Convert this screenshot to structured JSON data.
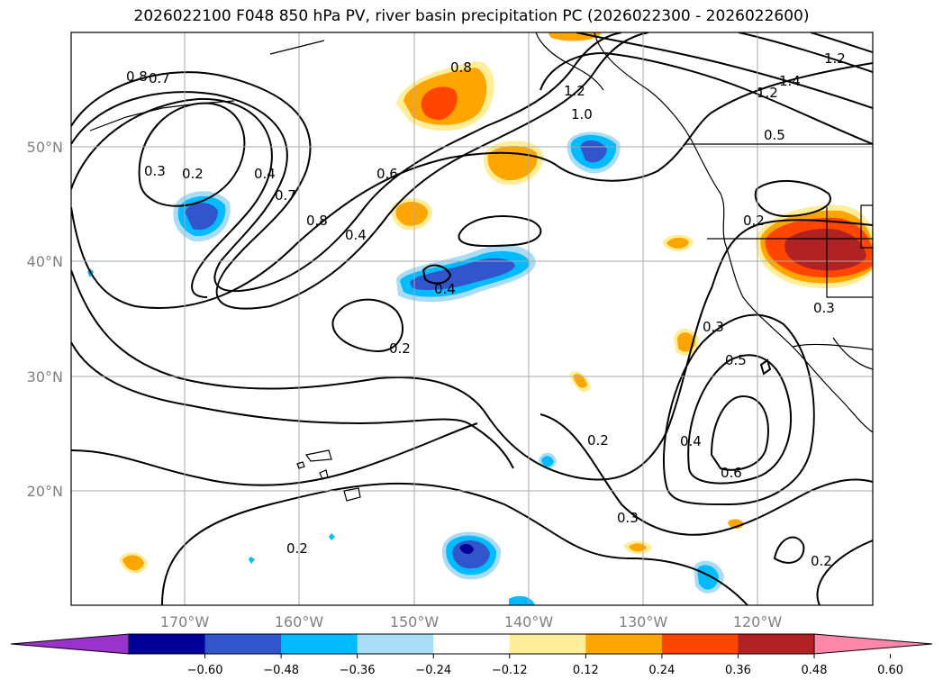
{
  "title": "2026022100 F048 850 hPa PV, river basin precipitation PC (2026022300 - 2026022600)",
  "lat_ticks": [
    "50°N",
    "40°N",
    "30°N",
    "20°N"
  ],
  "lon_ticks": [
    "170°W",
    "160°W",
    "150°W",
    "140°W",
    "130°W",
    "120°W"
  ],
  "colorbar": {
    "ticks": [
      "−0.60",
      "−0.48",
      "−0.36",
      "−0.24",
      "−0.12",
      "0.12",
      "0.24",
      "0.36",
      "0.48",
      "0.60"
    ],
    "colors": [
      "#9933cc",
      "#000099",
      "#3355cc",
      "#00bbff",
      "#aaddf5",
      "#ffffff",
      "#ffee99",
      "#ffa500",
      "#ff4500",
      "#b22222",
      "#ff88aa"
    ]
  },
  "contour_labels": [
    "0.8",
    "0.7",
    "0.2",
    "0.3",
    "0.4",
    "0.7",
    "0.6",
    "0.8",
    "0.4",
    "0.4",
    "0.2",
    "0.8",
    "1.2",
    "1.0",
    "1.2",
    "1.4",
    "1.2",
    "0.5",
    "0.2",
    "0.3",
    "0.3",
    "0.5",
    "0.4",
    "0.6",
    "0.2",
    "0.3",
    "0.2",
    "0.2"
  ]
}
